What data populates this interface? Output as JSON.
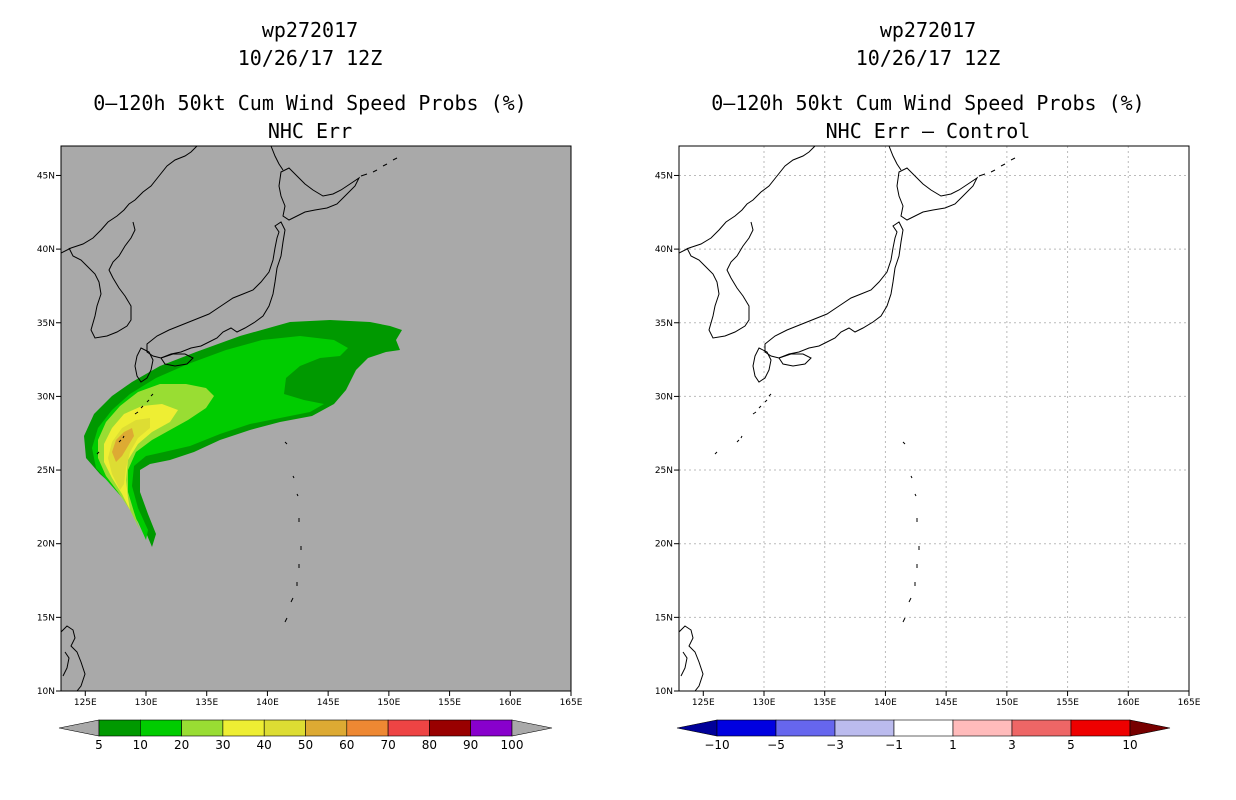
{
  "panels": [
    {
      "storm_id": "wp272017",
      "datetime": "10/26/17 12Z",
      "product": "0–120h 50kt Cum Wind Speed Probs (%)",
      "subtitle": "NHC Err",
      "background": "#a9a9a9",
      "colorbar": {
        "labels": [
          "5",
          "10",
          "20",
          "30",
          "40",
          "50",
          "60",
          "70",
          "80",
          "90",
          "100"
        ],
        "colors": [
          "#009900",
          "#00cc00",
          "#99dd33",
          "#eeee33",
          "#dddd33",
          "#ddaa33",
          "#ee8833",
          "#ee4444",
          "#990000",
          "#8800cc"
        ],
        "end_left": "#a9a9a9",
        "end_right": "#a9a9a9"
      }
    },
    {
      "storm_id": "wp272017",
      "datetime": "10/26/17 12Z",
      "product": "0–120h 50kt Cum Wind Speed Probs (%)",
      "subtitle": "NHC Err – Control",
      "background": "#ffffff",
      "colorbar": {
        "labels": [
          "−10",
          "−5",
          "−3",
          "−1",
          "1",
          "3",
          "5",
          "10"
        ],
        "colors": [
          "#0000e0",
          "#6666ee",
          "#bbbbee",
          "#ffffff",
          "#ffbbbb",
          "#ee6666",
          "#ee0000"
        ],
        "end_left": "#000099",
        "end_right": "#770000"
      }
    }
  ],
  "axes": {
    "lon_ticks": [
      "125E",
      "130E",
      "135E",
      "140E",
      "145E",
      "150E",
      "155E",
      "160E",
      "165E"
    ],
    "lat_ticks": [
      "45N",
      "40N",
      "35N",
      "30N",
      "25N",
      "20N",
      "15N",
      "10N"
    ],
    "lon_range": [
      123,
      165
    ],
    "lat_range": [
      10,
      47
    ]
  }
}
